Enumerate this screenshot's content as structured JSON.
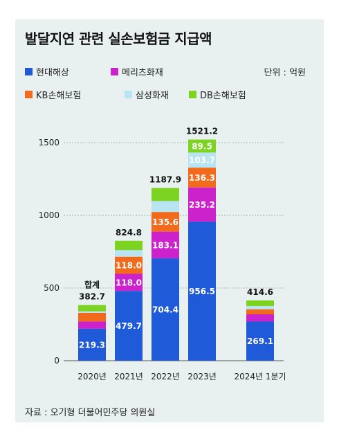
{
  "title": "발달지연 관련 실손보험금 지급액",
  "unit_label": "단위 : 억원",
  "source": "자료 : 오기형 더불어민주당 의원실",
  "colors": {
    "현대해상": "#1f5bd8",
    "메리츠화재": "#cc22cc",
    "KB손해보험": "#f26b1d",
    "삼성화재": "#b9e4f2",
    "DB손해보험": "#7dd321",
    "card_bg": "#e9f0f0"
  },
  "legend": [
    "현대해상",
    "메리츠화재",
    "KB손해보험",
    "삼성화재",
    "DB손해보험"
  ],
  "chart_data": {
    "type": "bar",
    "stacked": true,
    "categories": [
      "2020년",
      "2021년",
      "2022년",
      "2023년",
      "2024년 1분기"
    ],
    "series": [
      {
        "name": "현대해상",
        "values": [
          219.3,
          479.7,
          704.4,
          956.5,
          269.1
        ],
        "labels": [
          "219.3",
          "479.7",
          "704.4",
          "956.5",
          "269.1"
        ]
      },
      {
        "name": "메리츠화재",
        "values": [
          50,
          118.0,
          183.1,
          235.2,
          50
        ],
        "labels": [
          "",
          "118.0",
          "183.1",
          "235.2",
          ""
        ]
      },
      {
        "name": "KB손해보험",
        "values": [
          60,
          118.0,
          135.6,
          136.3,
          35
        ],
        "labels": [
          "",
          "118.0",
          "135.6",
          "136.3",
          ""
        ]
      },
      {
        "name": "삼성화재",
        "values": [
          10,
          45,
          75,
          103.7,
          22
        ],
        "labels": [
          "",
          "",
          "",
          "103.7",
          ""
        ]
      },
      {
        "name": "DB손해보험",
        "values": [
          43.4,
          64.1,
          89.8,
          89.5,
          38.5
        ],
        "labels": [
          "",
          "",
          "",
          "89.5",
          ""
        ]
      }
    ],
    "totals": [
      382.7,
      824.8,
      1187.9,
      1521.2,
      414.6
    ],
    "total_labels": [
      "382.7",
      "824.8",
      "1187.9",
      "1521.2",
      "414.6"
    ],
    "total_caption": "합계",
    "yticks": [
      0,
      500,
      1000,
      1500
    ],
    "ylim": [
      0,
      1580
    ],
    "grid": true
  }
}
